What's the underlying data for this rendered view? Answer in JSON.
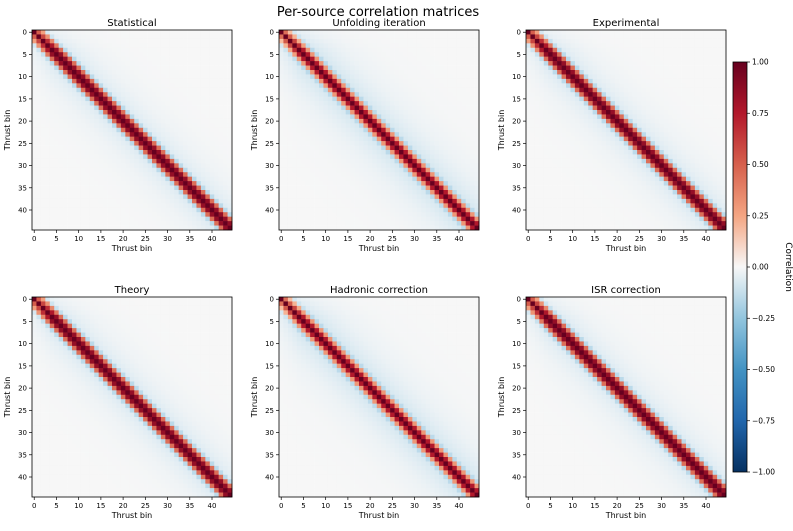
{
  "figure_title": "Per-source correlation matrices",
  "colors": {
    "title": "#1f3b8c",
    "neg_end": "#053061",
    "mid": "#f7f7f7",
    "pos_end": "#67001f",
    "cell_grid": "#ffffff"
  },
  "colorbar": {
    "label": "Correlation",
    "ticks": [
      "1.00",
      "0.75",
      "0.50",
      "0.25",
      "0.00",
      "−0.25",
      "−0.50",
      "−0.75",
      "−1.00"
    ],
    "tick_values": [
      1.0,
      0.75,
      0.5,
      0.25,
      0.0,
      -0.25,
      -0.5,
      -0.75,
      -1.0
    ],
    "range": [
      -1,
      1
    ],
    "colormap": "RdBu_r"
  },
  "chart_data": [
    {
      "type": "heatmap",
      "title": "Statistical",
      "xlabel": "Thrust bin",
      "ylabel": "Thrust bin",
      "n_bins": 45,
      "xticks": [
        0,
        5,
        10,
        15,
        20,
        25,
        30,
        35,
        40
      ],
      "yticks": [
        0,
        5,
        10,
        15,
        20,
        25,
        30,
        35,
        40
      ],
      "diagonal": 1.0,
      "first_neighbor": 0.85,
      "second_neighbor": 0.45,
      "third_neighbor": -0.15,
      "far_field": -0.06,
      "far_decay_bins": 5
    },
    {
      "type": "heatmap",
      "title": "Unfolding iteration",
      "xlabel": "Thrust bin",
      "ylabel": "Thrust bin",
      "n_bins": 45,
      "xticks": [
        0,
        5,
        10,
        15,
        20,
        25,
        30,
        35,
        40
      ],
      "yticks": [
        0,
        5,
        10,
        15,
        20,
        25,
        30,
        35,
        40
      ],
      "diagonal": 1.0,
      "first_neighbor": 0.75,
      "second_neighbor": 0.3,
      "third_neighbor": -0.15,
      "far_field": -0.08,
      "far_decay_bins": 6
    },
    {
      "type": "heatmap",
      "title": "Experimental",
      "xlabel": "Thrust bin",
      "ylabel": "Thrust bin",
      "n_bins": 45,
      "xticks": [
        0,
        5,
        10,
        15,
        20,
        25,
        30,
        35,
        40
      ],
      "yticks": [
        0,
        5,
        10,
        15,
        20,
        25,
        30,
        35,
        40
      ],
      "diagonal": 1.0,
      "first_neighbor": 0.85,
      "second_neighbor": 0.45,
      "third_neighbor": -0.15,
      "far_field": -0.06,
      "far_decay_bins": 5
    },
    {
      "type": "heatmap",
      "title": "Theory",
      "xlabel": "Thrust bin",
      "ylabel": "Thrust bin",
      "n_bins": 45,
      "xticks": [
        0,
        5,
        10,
        15,
        20,
        25,
        30,
        35,
        40
      ],
      "yticks": [
        0,
        5,
        10,
        15,
        20,
        25,
        30,
        35,
        40
      ],
      "diagonal": 1.0,
      "first_neighbor": 0.85,
      "second_neighbor": 0.45,
      "third_neighbor": -0.15,
      "far_field": -0.06,
      "far_decay_bins": 5
    },
    {
      "type": "heatmap",
      "title": "Hadronic correction",
      "xlabel": "Thrust bin",
      "ylabel": "Thrust bin",
      "n_bins": 45,
      "xticks": [
        0,
        5,
        10,
        15,
        20,
        25,
        30,
        35,
        40
      ],
      "yticks": [
        0,
        5,
        10,
        15,
        20,
        25,
        30,
        35,
        40
      ],
      "diagonal": 1.0,
      "first_neighbor": 0.75,
      "second_neighbor": 0.3,
      "third_neighbor": -0.15,
      "far_field": -0.08,
      "far_decay_bins": 6
    },
    {
      "type": "heatmap",
      "title": "ISR correction",
      "xlabel": "Thrust bin",
      "ylabel": "Thrust bin",
      "n_bins": 45,
      "xticks": [
        0,
        5,
        10,
        15,
        20,
        25,
        30,
        35,
        40
      ],
      "yticks": [
        0,
        5,
        10,
        15,
        20,
        25,
        30,
        35,
        40
      ],
      "diagonal": 1.0,
      "first_neighbor": 0.85,
      "second_neighbor": 0.45,
      "third_neighbor": -0.15,
      "far_field": -0.06,
      "far_decay_bins": 5
    }
  ]
}
